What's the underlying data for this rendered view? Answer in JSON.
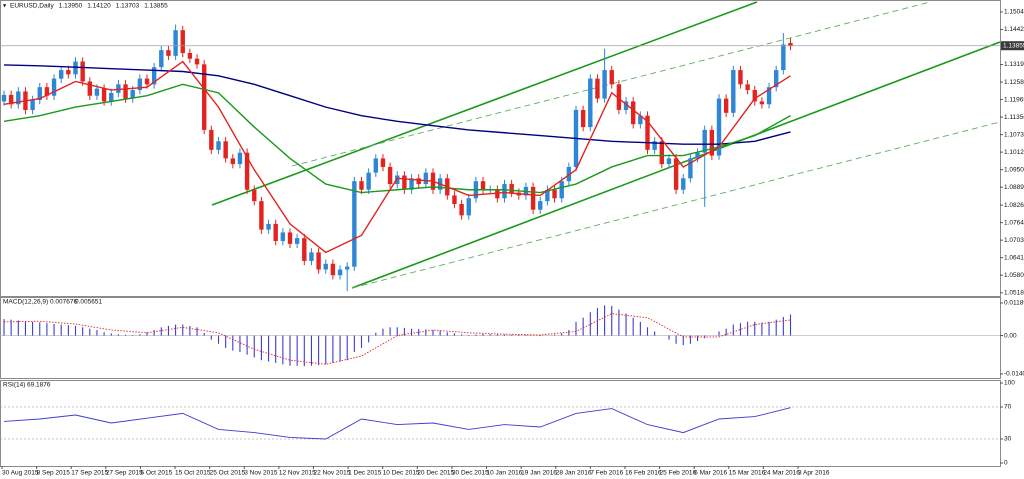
{
  "chart_data": [
    {
      "type": "candlestick",
      "symbol": "EURUSD,Daily",
      "header_values": [
        "1.13950",
        "1.14120",
        "1.13703",
        "1.13855"
      ],
      "up_color": "#2e86d6",
      "down_color": "#e3231f",
      "ylim": [
        1.0507,
        1.1546
      ],
      "yticks": [
        {
          "value": 1.1504,
          "label": "1.15040"
        },
        1.14425,
        1.13195,
        {
          "value": 1.1258,
          "label": "1.12580"
        },
        1.11965,
        {
          "value": 1.1135,
          "label": "1.11350"
        },
        1.10735,
        {
          "value": 1.1012,
          "label": "1.10120"
        },
        1.09505,
        {
          "value": 1.0889,
          "label": "1.08890"
        },
        {
          "value": 1.0826,
          "label": "1.08260"
        },
        1.07645,
        {
          "value": 1.0703,
          "label": "1.07030"
        },
        1.06415,
        {
          "value": 1.058,
          "label": "1.05800"
        },
        {
          "value": 1.0518,
          "label": "1.05180"
        }
      ],
      "current_price": 1.13855,
      "xtick_labels": [
        "30 Aug 2015",
        "8 Sep 2015",
        "17 Sep 2015",
        "27 Sep 2015",
        "6 Oct 2015",
        "15 Oct 2015",
        "25 Oct 2015",
        "3 Nov 2015",
        "12 Nov 2015",
        "22 Nov 2015",
        "1 Dec 2015",
        "10 Dec 2015",
        "20 Dec 2015",
        "30 Dec 2015",
        "10 Jan 2016",
        "19 Jan 2016",
        "28 Jan 2016",
        "7 Feb 2016",
        "16 Feb 2016",
        "25 Feb 2016",
        "6 Mar 2016",
        "15 Mar 2016",
        "24 Mar 2016",
        "3 Apr 2016"
      ],
      "open": [
        1.119,
        1.1213,
        1.118,
        1.1225,
        1.116,
        1.1195,
        1.124,
        1.121,
        1.127,
        1.13,
        1.1285,
        1.133,
        1.126,
        1.121,
        1.1235,
        1.119,
        1.122,
        1.125,
        1.12,
        1.123,
        1.127,
        1.125,
        1.131,
        1.137,
        1.135,
        1.144,
        1.136,
        1.134,
        1.132,
        1.109,
        1.102,
        1.105,
        1.099,
        1.097,
        1.101,
        1.088,
        1.084,
        1.074,
        1.076,
        1.07,
        1.073,
        1.069,
        1.071,
        1.063,
        1.066,
        1.06,
        1.062,
        1.058,
        1.06,
        1.061,
        1.091,
        1.088,
        1.094,
        1.099,
        1.096,
        1.09,
        1.093,
        1.088,
        1.092,
        1.09,
        1.094,
        1.088,
        1.092,
        1.086,
        1.083,
        1.079,
        1.085,
        1.091,
        1.088,
        1.088,
        1.085,
        1.09,
        1.087,
        1.086,
        1.089,
        1.081,
        1.084,
        1.088,
        1.085,
        1.091,
        1.096,
        1.116,
        1.11,
        1.127,
        1.12,
        1.13,
        1.125,
        1.116,
        1.119,
        1.111,
        1.114,
        1.102,
        1.105,
        1.097,
        1.099,
        1.088,
        1.092,
        1.099,
        1.101,
        1.109,
        1.1,
        1.12,
        1.115,
        1.13,
        1.125,
        1.123,
        1.119,
        1.118,
        1.124,
        1.13,
        1.1395
      ],
      "high": [
        1.1228,
        1.1228,
        1.124,
        1.124,
        1.121,
        1.1255,
        1.1255,
        1.1285,
        1.1315,
        1.1315,
        1.1345,
        1.1345,
        1.1275,
        1.125,
        1.125,
        1.1235,
        1.1265,
        1.1265,
        1.1245,
        1.1285,
        1.1285,
        1.1325,
        1.1385,
        1.1385,
        1.146,
        1.1455,
        1.1375,
        1.1355,
        1.1335,
        1.1105,
        1.1065,
        1.1065,
        1.1005,
        1.1025,
        1.1025,
        1.0895,
        1.0855,
        1.0775,
        1.0775,
        1.0745,
        1.0745,
        1.0725,
        1.0725,
        1.0675,
        1.0675,
        1.0635,
        1.0635,
        1.0615,
        1.0625,
        1.0925,
        1.0925,
        1.0955,
        1.1005,
        1.1005,
        1.0975,
        1.0945,
        1.0945,
        1.0935,
        1.0935,
        1.0955,
        1.0955,
        1.0935,
        1.0935,
        1.0875,
        1.0845,
        1.0865,
        1.0925,
        1.0925,
        1.0895,
        1.0895,
        1.0915,
        1.0915,
        1.0885,
        1.0905,
        1.0905,
        1.0855,
        1.0895,
        1.0895,
        1.0925,
        1.0975,
        1.1175,
        1.1175,
        1.1285,
        1.1285,
        1.1375,
        1.1315,
        1.1265,
        1.1205,
        1.1205,
        1.1155,
        1.1155,
        1.1065,
        1.1065,
        1.1005,
        1.1005,
        1.0935,
        1.1005,
        1.1025,
        1.1105,
        1.1105,
        1.1215,
        1.1215,
        1.1315,
        1.1315,
        1.1265,
        1.1245,
        1.1205,
        1.1255,
        1.1315,
        1.143,
        1.1412
      ],
      "low": [
        1.1175,
        1.1165,
        1.1165,
        1.1145,
        1.1145,
        1.118,
        1.1195,
        1.1195,
        1.1255,
        1.127,
        1.127,
        1.1245,
        1.1195,
        1.1195,
        1.1175,
        1.1175,
        1.1205,
        1.1185,
        1.1185,
        1.1215,
        1.1235,
        1.1235,
        1.1295,
        1.1335,
        1.1335,
        1.1345,
        1.1325,
        1.1305,
        1.1075,
        1.1005,
        1.1005,
        1.0975,
        1.0955,
        1.0955,
        1.0865,
        1.0825,
        1.0725,
        1.0725,
        1.0685,
        1.0685,
        1.0675,
        1.0675,
        1.0615,
        1.0615,
        1.0585,
        1.0585,
        1.0565,
        1.0565,
        1.0524,
        1.0595,
        1.0865,
        1.0865,
        1.0925,
        1.0945,
        1.0885,
        1.0885,
        1.0865,
        1.0865,
        1.0885,
        1.0885,
        1.0865,
        1.0865,
        1.0845,
        1.0815,
        1.0775,
        1.0775,
        1.0835,
        1.0865,
        1.0865,
        1.0835,
        1.0835,
        1.0855,
        1.0845,
        1.0845,
        1.0795,
        1.0795,
        1.0825,
        1.0835,
        1.0835,
        1.0895,
        1.0945,
        1.1085,
        1.1085,
        1.1185,
        1.1185,
        1.1235,
        1.1145,
        1.1145,
        1.1095,
        1.1095,
        1.1005,
        1.1005,
        1.0955,
        1.0955,
        1.0865,
        1.0865,
        1.0905,
        1.0975,
        1.082,
        1.0985,
        1.0985,
        1.1135,
        1.1135,
        1.1235,
        1.1215,
        1.1175,
        1.1165,
        1.1165,
        1.1225,
        1.1285,
        1.13703
      ],
      "close": [
        1.1213,
        1.118,
        1.1225,
        1.116,
        1.1195,
        1.124,
        1.121,
        1.127,
        1.13,
        1.1285,
        1.133,
        1.126,
        1.121,
        1.1235,
        1.119,
        1.122,
        1.125,
        1.12,
        1.123,
        1.127,
        1.125,
        1.131,
        1.137,
        1.135,
        1.144,
        1.136,
        1.134,
        1.132,
        1.109,
        1.102,
        1.105,
        1.099,
        1.097,
        1.101,
        1.088,
        1.084,
        1.074,
        1.076,
        1.07,
        1.073,
        1.069,
        1.071,
        1.063,
        1.066,
        1.06,
        1.062,
        1.058,
        1.06,
        1.061,
        1.091,
        1.088,
        1.094,
        1.099,
        1.096,
        1.09,
        1.093,
        1.088,
        1.092,
        1.09,
        1.094,
        1.088,
        1.092,
        1.086,
        1.083,
        1.079,
        1.085,
        1.091,
        1.088,
        1.088,
        1.085,
        1.09,
        1.087,
        1.086,
        1.089,
        1.081,
        1.084,
        1.088,
        1.085,
        1.091,
        1.096,
        1.116,
        1.11,
        1.127,
        1.12,
        1.13,
        1.125,
        1.116,
        1.119,
        1.111,
        1.114,
        1.102,
        1.105,
        1.097,
        1.099,
        1.088,
        1.092,
        1.099,
        1.101,
        1.109,
        1.1,
        1.12,
        1.115,
        1.13,
        1.125,
        1.123,
        1.119,
        1.118,
        1.124,
        1.13,
        1.139,
        1.13855
      ],
      "moving_averages": [
        {
          "color": "#000080",
          "x": [
            0,
            5,
            10,
            15,
            20,
            25,
            30,
            35,
            40,
            45,
            50,
            55,
            60,
            65,
            70,
            75,
            80,
            85,
            90,
            95,
            100,
            105,
            110
          ],
          "values": [
            1.1318,
            1.1315,
            1.131,
            1.1305,
            1.13,
            1.1295,
            1.128,
            1.125,
            1.121,
            1.117,
            1.114,
            1.112,
            1.1105,
            1.109,
            1.108,
            1.107,
            1.106,
            1.105,
            1.1045,
            1.104,
            1.104,
            1.105,
            1.1083
          ]
        },
        {
          "color": "#1a9a1a",
          "x": [
            0,
            5,
            10,
            15,
            20,
            25,
            30,
            35,
            40,
            45,
            50,
            55,
            60,
            65,
            70,
            75,
            80,
            85,
            90,
            95,
            100,
            105,
            110
          ],
          "values": [
            1.112,
            1.114,
            1.117,
            1.119,
            1.121,
            1.125,
            1.122,
            1.11,
            1.099,
            1.09,
            1.087,
            1.088,
            1.089,
            1.088,
            1.088,
            1.087,
            1.09,
            1.096,
            1.1,
            1.1,
            1.103,
            1.107,
            1.114
          ]
        },
        {
          "color": "#e3231f",
          "x": [
            0,
            5,
            10,
            15,
            20,
            25,
            30,
            35,
            40,
            45,
            50,
            55,
            60,
            65,
            70,
            75,
            80,
            85,
            90,
            95,
            100,
            105,
            110
          ],
          "values": [
            1.118,
            1.12,
            1.126,
            1.123,
            1.124,
            1.133,
            1.117,
            1.095,
            1.076,
            1.066,
            1.072,
            1.092,
            1.091,
            1.086,
            1.087,
            1.086,
            1.095,
            1.122,
            1.112,
            1.096,
            1.103,
            1.12,
            1.128
          ]
        }
      ]
    },
    {
      "type": "macd",
      "label": "MACD(12,26,9)",
      "header_values": [
        0.007676,
        0.005651
      ],
      "ylim": [
        -0.0155,
        0.0137
      ],
      "yticks": [
        0.011894,
        {
          "value": 0,
          "label": "0.00"
        },
        {
          "value": -0.01401,
          "label": "-0.014010"
        }
      ],
      "histogram": {
        "color": "#3c3cd2",
        "values": [
          0.006,
          0.0058,
          0.0055,
          0.0052,
          0.005,
          0.0048,
          0.0045,
          0.0042,
          0.004,
          0.0038,
          0.0035,
          0.003,
          0.0025,
          0.002,
          0.0012,
          0.0008,
          0.0005,
          0.0003,
          0.0002,
          0.0005,
          0.0012,
          0.002,
          0.003,
          0.0035,
          0.004,
          0.004,
          0.0035,
          0.003,
          0.001,
          -0.0015,
          -0.003,
          -0.0045,
          -0.0055,
          -0.006,
          -0.007,
          -0.008,
          -0.009,
          -0.0095,
          -0.01,
          -0.0105,
          -0.011,
          -0.011,
          -0.0112,
          -0.011,
          -0.0108,
          -0.0105,
          -0.01,
          -0.0095,
          -0.009,
          -0.006,
          -0.0045,
          -0.0025,
          0.001,
          0.0025,
          0.003,
          0.003,
          0.0028,
          0.0025,
          0.0024,
          0.0022,
          0.002,
          0.0018,
          0.0012,
          0.0008,
          0.0004,
          0.0002,
          0.0004,
          0.0006,
          0.0005,
          0.0004,
          0.0004,
          0.0003,
          0.0002,
          0.0002,
          0.0,
          -0.0002,
          0.0,
          0.0003,
          0.0008,
          0.002,
          0.005,
          0.0065,
          0.0085,
          0.01,
          0.011,
          0.0108,
          0.0095,
          0.008,
          0.0065,
          0.005,
          0.003,
          0.0015,
          0.0,
          -0.0015,
          -0.003,
          -0.0035,
          -0.003,
          -0.002,
          -0.001,
          0.0,
          0.0015,
          0.0025,
          0.004,
          0.0045,
          0.005,
          0.005,
          0.0048,
          0.005,
          0.0058,
          0.0068,
          0.0077
        ]
      },
      "signal": {
        "color": "#e3231f",
        "x": [
          0,
          5,
          10,
          15,
          20,
          25,
          30,
          35,
          40,
          45,
          50,
          55,
          60,
          65,
          70,
          75,
          80,
          85,
          90,
          95,
          100,
          105,
          110
        ],
        "values": [
          0.005,
          0.0052,
          0.0042,
          0.002,
          0.001,
          0.003,
          0.001,
          -0.005,
          -0.009,
          -0.0105,
          -0.0075,
          0.0,
          0.002,
          0.001,
          0.0005,
          0.0002,
          0.0015,
          0.008,
          0.0065,
          -0.0005,
          -0.0005,
          0.004,
          0.0057
        ]
      }
    },
    {
      "type": "line",
      "label": "RSI(14)",
      "header_values": [
        69.1876
      ],
      "ylim": [
        0,
        100
      ],
      "yticks": [
        100,
        70,
        30,
        0
      ],
      "series": [
        {
          "color": "#3c3cd2",
          "x": [
            0,
            5,
            10,
            15,
            20,
            25,
            30,
            35,
            40,
            45,
            50,
            55,
            60,
            65,
            70,
            75,
            80,
            85,
            90,
            95,
            100,
            105,
            110
          ],
          "values": [
            52,
            55,
            60,
            50,
            56,
            62,
            42,
            38,
            32,
            30,
            55,
            48,
            50,
            42,
            48,
            45,
            62,
            68,
            48,
            38,
            55,
            58,
            69.1876
          ]
        }
      ]
    }
  ]
}
